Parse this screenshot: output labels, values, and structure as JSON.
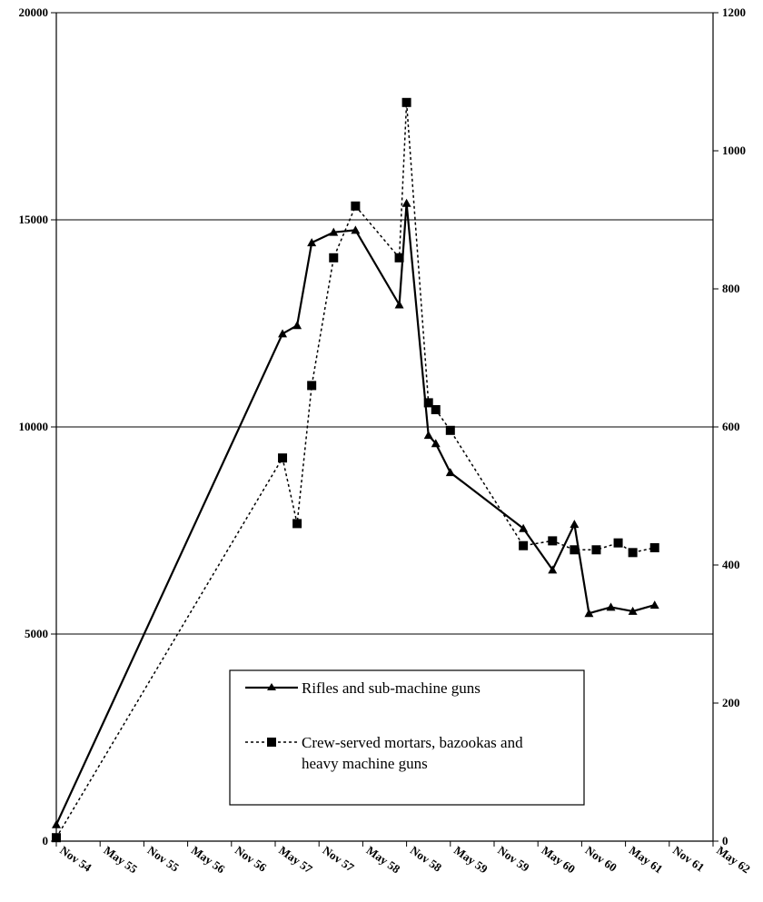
{
  "chart_data": {
    "type": "line",
    "title": "",
    "xlabel": "",
    "ylabel": "",
    "x_tick_labels": [
      "Nov 54",
      "May 55",
      "Nov 55",
      "May 56",
      "Nov 56",
      "May 57",
      "Nov 57",
      "May 58",
      "Nov 58",
      "May 59",
      "Nov 59",
      "May 60",
      "Nov 60",
      "May 61",
      "Nov 61",
      "May 62"
    ],
    "y_left": {
      "ticks": [
        0,
        5000,
        10000,
        15000,
        20000
      ],
      "ylim": [
        0,
        20000
      ]
    },
    "y_right": {
      "ticks": [
        0,
        200,
        400,
        600,
        800,
        1000,
        1200
      ],
      "ylim": [
        0,
        1200
      ]
    },
    "grid": "horizontal major lines at left-axis ticks",
    "legend_position": "lower center",
    "series": [
      {
        "name": "Rifles and sub-machine guns",
        "axis": "left",
        "style": "solid",
        "marker": "triangle",
        "x": [
          "Nov 54",
          "Jun 57",
          "Aug 57",
          "Oct 57",
          "Jan 58",
          "Apr 58",
          "Oct 58",
          "Nov 58",
          "Feb 59",
          "Mar 59",
          "May 59",
          "Mar 60",
          "Jul 60",
          "Oct 60",
          "Dec 60",
          "Mar 61",
          "Jun 61",
          "Sep 61"
        ],
        "values": [
          400,
          12250,
          12450,
          14450,
          14700,
          14750,
          12950,
          15400,
          9800,
          9600,
          8900,
          7550,
          6550,
          7650,
          5500,
          5650,
          5550,
          5700
        ]
      },
      {
        "name": "Crew-served mortars, bazookas and heavy machine guns",
        "axis": "right",
        "style": "dotted",
        "marker": "square",
        "x": [
          "Nov 54",
          "Jun 57",
          "Aug 57",
          "Oct 57",
          "Jan 58",
          "Apr 58",
          "Oct 58",
          "Nov 58",
          "Feb 59",
          "Mar 59",
          "May 59",
          "Mar 60",
          "Jul 60",
          "Oct 60",
          "Jan 61",
          "Apr 61",
          "Jun 61",
          "Sep 61"
        ],
        "values": [
          5,
          555,
          460,
          660,
          845,
          920,
          845,
          1070,
          635,
          625,
          595,
          428,
          435,
          422,
          422,
          432,
          418,
          425
        ]
      }
    ]
  }
}
